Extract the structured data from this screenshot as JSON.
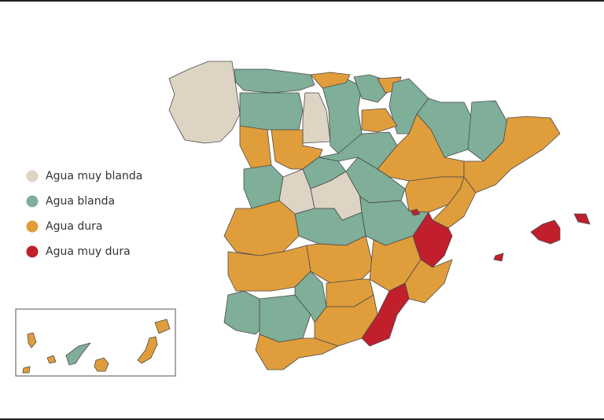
{
  "legend": {
    "items": [
      {
        "label": "Agua muy blanda",
        "color": "#ddd4c4"
      },
      {
        "label": "Agua blanda",
        "color": "#7fae99"
      },
      {
        "label": "Agua dura",
        "color": "#e09d3b"
      },
      {
        "label": "Agua muy dura",
        "color": "#c01f2b"
      }
    ]
  }
}
